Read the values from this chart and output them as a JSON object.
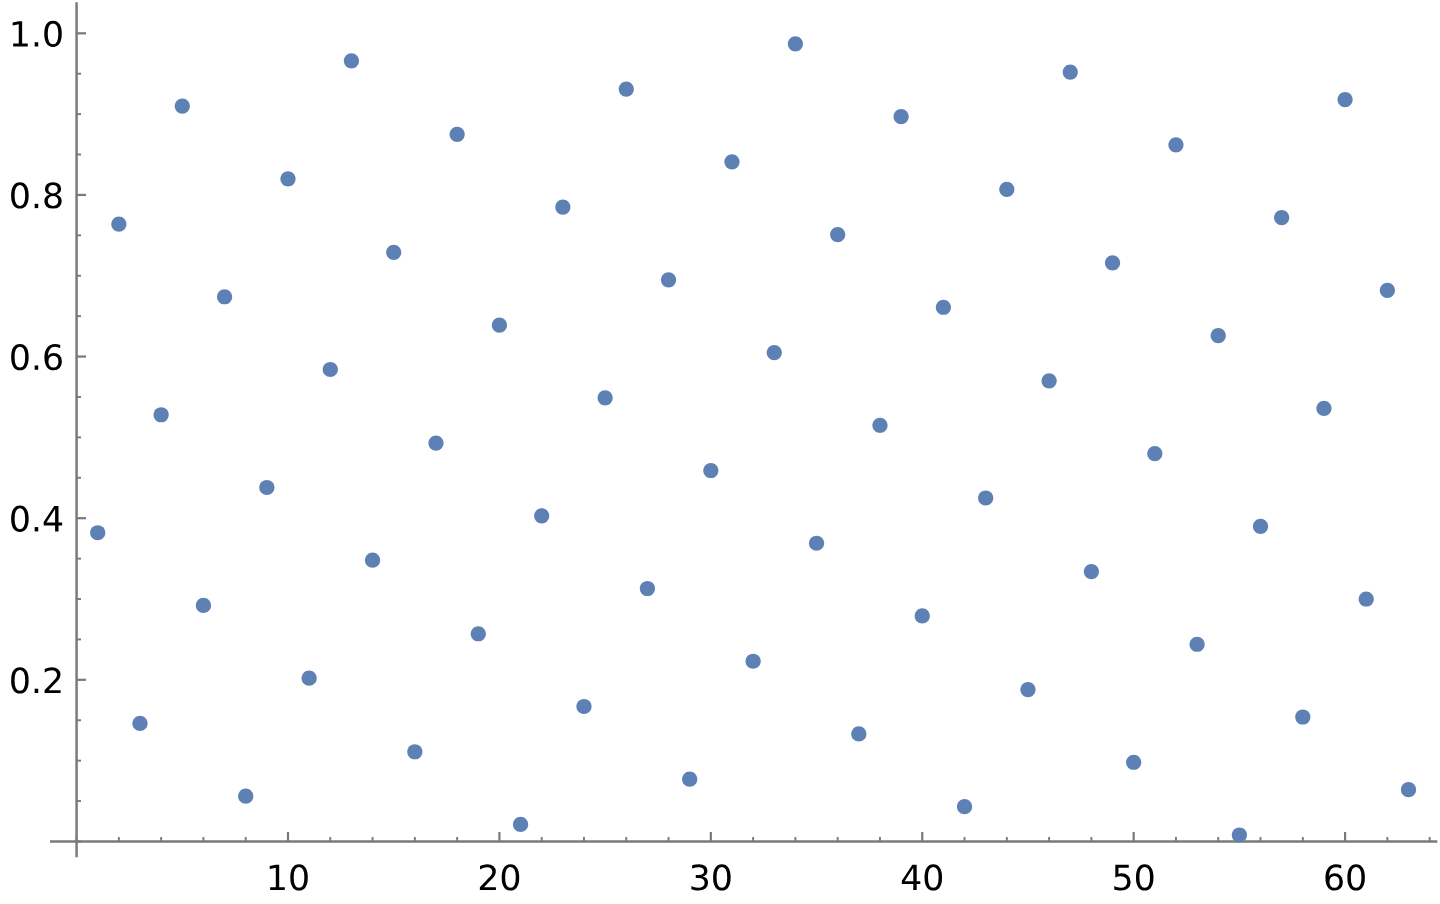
{
  "chart_data": {
    "type": "scatter",
    "marker": "circle",
    "color": "#5e81b5",
    "x": [
      1,
      2,
      3,
      4,
      5,
      6,
      7,
      8,
      9,
      10,
      11,
      12,
      13,
      14,
      15,
      16,
      17,
      18,
      19,
      20,
      21,
      22,
      23,
      24,
      25,
      26,
      27,
      28,
      29,
      30,
      31,
      32,
      33,
      34,
      35,
      36,
      37,
      38,
      39,
      40,
      41,
      42,
      43,
      44,
      45,
      46,
      47,
      48,
      49,
      50,
      51,
      52,
      53,
      54,
      55,
      56,
      57,
      58,
      59,
      60,
      61,
      62,
      63
    ],
    "values": [
      0.382,
      0.764,
      0.146,
      0.528,
      0.91,
      0.292,
      0.674,
      0.056,
      0.438,
      0.82,
      0.202,
      0.584,
      0.966,
      0.348,
      0.729,
      0.111,
      0.493,
      0.875,
      0.257,
      0.639,
      0.021,
      0.403,
      0.785,
      0.167,
      0.549,
      0.931,
      0.313,
      0.695,
      0.077,
      0.459,
      0.841,
      0.223,
      0.605,
      0.987,
      0.369,
      0.751,
      0.133,
      0.515,
      0.897,
      0.279,
      0.661,
      0.043,
      0.425,
      0.807,
      0.188,
      0.57,
      0.952,
      0.334,
      0.716,
      0.098,
      0.48,
      0.862,
      0.244,
      0.626,
      0.008,
      0.39,
      0.772,
      0.154,
      0.536,
      0.918,
      0.3,
      0.682,
      0.064
    ],
    "xlim": [
      -1.2,
      64.3
    ],
    "ylim": [
      -0.018,
      1.037
    ],
    "xticks": [
      10,
      20,
      30,
      40,
      50,
      60
    ],
    "yticks": [
      0.2,
      0.4,
      0.6,
      0.8,
      {
        "value": 1,
        "label": "1.0"
      }
    ]
  }
}
